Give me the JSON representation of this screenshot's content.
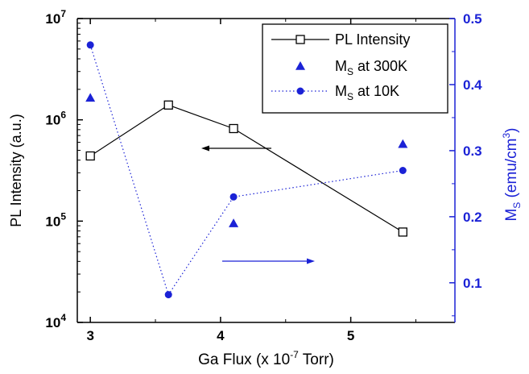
{
  "chart_data": {
    "type": "line",
    "xlabel": {
      "main": "Ga Flux (x 10",
      "sup": "-7",
      "tail": " Torr)"
    },
    "ylabel_left": "PL Intensity (a.u.)",
    "ylabel_right": {
      "main": "M",
      "sub": "S",
      "mid": " (emu/cm",
      "sup": "3",
      "tail": ")"
    },
    "xlim": [
      2.9,
      5.8
    ],
    "x_ticks": [
      "3",
      "4",
      "5"
    ],
    "y_left_scale": "log",
    "y_left_lim": [
      10000,
      10000000
    ],
    "y_left_ticks": [
      {
        "base": "10",
        "exp": "4"
      },
      {
        "base": "10",
        "exp": "5"
      },
      {
        "base": "10",
        "exp": "6"
      },
      {
        "base": "10",
        "exp": "7"
      }
    ],
    "y_right_lim": [
      0.04,
      0.5
    ],
    "y_right_ticks": [
      "0.1",
      "0.2",
      "0.3",
      "0.4",
      "0.5"
    ],
    "grid": false,
    "legend_position": "top-right",
    "legend": [
      {
        "main": "PL Intensity",
        "sub": "",
        "tail": ""
      },
      {
        "main": "M",
        "sub": "S",
        "tail": " at 300K"
      },
      {
        "main": "M",
        "sub": "S",
        "tail": " at 10K"
      }
    ],
    "series": [
      {
        "name": "PL Intensity",
        "axis": "left",
        "style": "solid-line-open-square",
        "color": "#000000",
        "x": [
          3.0,
          3.6,
          4.1,
          5.4
        ],
        "y": [
          440000,
          1400000,
          820000,
          78000
        ]
      },
      {
        "name": "M_S at 300K",
        "axis": "right",
        "style": "triangle-markers",
        "color": "#1b22d6",
        "x": [
          3.0,
          4.1,
          5.4
        ],
        "y": [
          0.38,
          0.19,
          0.31
        ]
      },
      {
        "name": "M_S at 10K",
        "axis": "right",
        "style": "dotted-line-circles",
        "color": "#1b22d6",
        "x": [
          3.0,
          3.6,
          4.1,
          5.4
        ],
        "y": [
          0.46,
          0.082,
          0.23,
          0.27
        ]
      }
    ],
    "annotations": [
      {
        "type": "arrow",
        "direction": "left",
        "color": "#000000",
        "meaning": "PL Intensity uses left axis"
      },
      {
        "type": "arrow",
        "direction": "right",
        "color": "#1b22d6",
        "meaning": "M_S uses right axis"
      }
    ]
  }
}
